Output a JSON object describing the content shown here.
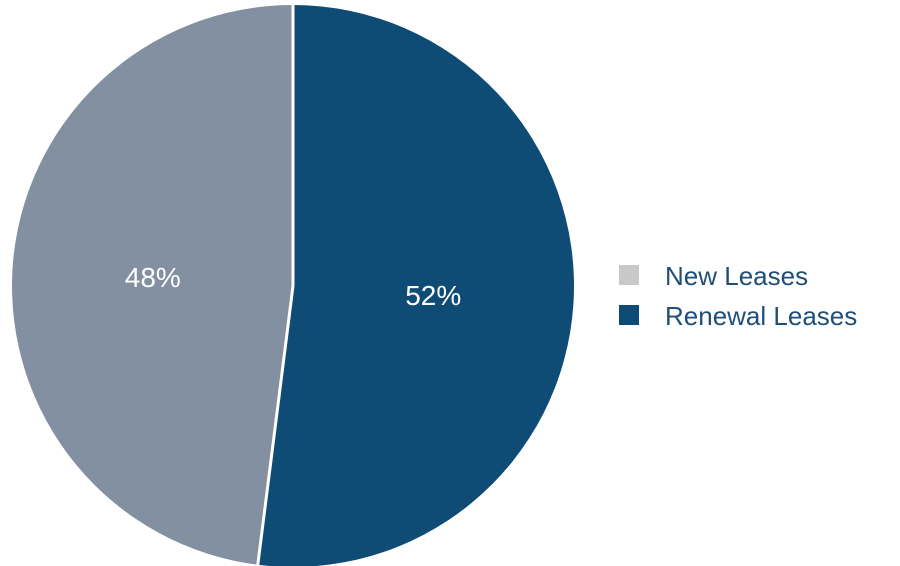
{
  "chart_data": {
    "type": "pie",
    "start_angle_deg": 0,
    "direction": "clockwise",
    "slices": [
      {
        "name": "Renewal Leases",
        "value": 52,
        "label": "52%",
        "color": "#0f4c75"
      },
      {
        "name": "New Leases",
        "value": 48,
        "label": "48%",
        "color": "#8390a1"
      }
    ],
    "legend": {
      "position": "right",
      "entries": [
        {
          "name": "New Leases",
          "color": "#c8c8c8"
        },
        {
          "name": "Renewal Leases",
          "color": "#0f4c75"
        }
      ]
    },
    "separator_color": "#ffffff"
  }
}
